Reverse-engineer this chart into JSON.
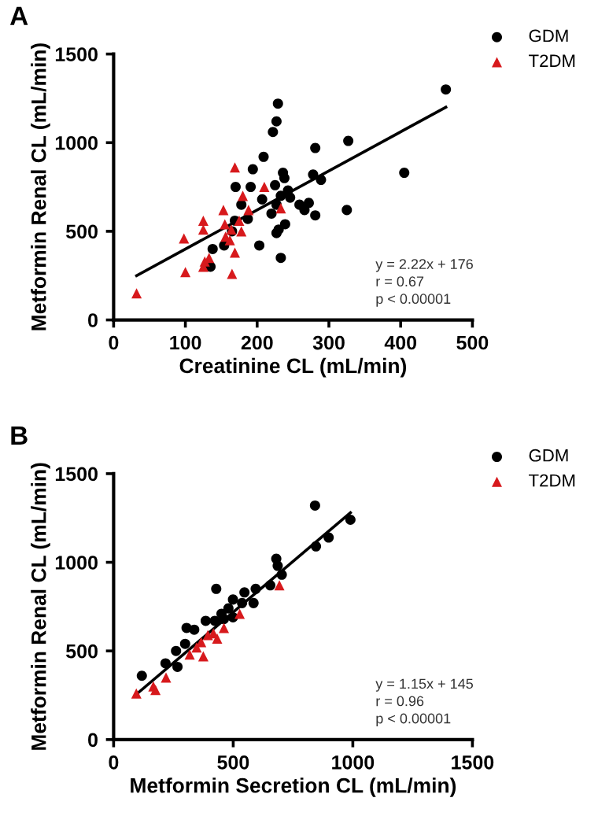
{
  "chart_data": [
    {
      "type": "scatter",
      "title": "A",
      "xlabel": "Creatinine CL (mL/min)",
      "ylabel": "Metformin Renal CL (mL/min)",
      "xlim": [
        0,
        500
      ],
      "ylim": [
        0,
        1500
      ],
      "xticks": [
        0,
        100,
        200,
        300,
        400,
        500
      ],
      "yticks": [
        0,
        500,
        1000,
        1500
      ],
      "legend": "top right",
      "grid": false,
      "annotations": [
        "y = 2.22x + 176\nr = 0.67\np < 0.00001"
      ],
      "series": [
        {
          "name": "GDM",
          "color": "#000000",
          "marker": "circle",
          "x": [
            463,
            229,
            227,
            222,
            281,
            327,
            209,
            194,
            405,
            236,
            238,
            278,
            289,
            191,
            170,
            225,
            243,
            246,
            233,
            207,
            227,
            259,
            272,
            266,
            281,
            325,
            178,
            220,
            187,
            169,
            239,
            230,
            227,
            165,
            154,
            203,
            138,
            135,
            233
          ],
          "values": [
            1300,
            1220,
            1120,
            1060,
            970,
            1010,
            920,
            850,
            830,
            830,
            800,
            820,
            790,
            750,
            750,
            760,
            730,
            690,
            700,
            680,
            650,
            650,
            660,
            620,
            590,
            620,
            650,
            600,
            570,
            560,
            540,
            510,
            490,
            500,
            420,
            420,
            400,
            300,
            350
          ]
        },
        {
          "name": "T2DM",
          "color": "#d7191c",
          "marker": "triangle",
          "x": [
            32,
            98,
            100,
            125,
            125,
            153,
            155,
            169,
            180,
            210,
            233,
            188,
            175,
            164,
            156,
            169,
            165,
            127,
            133,
            125,
            178,
            162
          ],
          "values": [
            150,
            460,
            270,
            560,
            510,
            620,
            540,
            860,
            700,
            750,
            630,
            620,
            560,
            510,
            470,
            380,
            260,
            330,
            350,
            300,
            500,
            450
          ]
        },
        {
          "type": "line",
          "color": "#000000",
          "x": [
            32,
            463
          ],
          "values": [
            250,
            1200
          ]
        }
      ]
    },
    {
      "type": "scatter",
      "title": "B",
      "xlabel": "Metformin Secretion CL (mL/min)",
      "ylabel": "Metformin Renal CL (mL/min)",
      "xlim": [
        0,
        1500
      ],
      "ylim": [
        0,
        1500
      ],
      "xticks": [
        0,
        500,
        1000,
        1500
      ],
      "yticks": [
        0,
        500,
        1000,
        1500
      ],
      "legend": "top right",
      "grid": false,
      "annotations": [
        "y = 1.15x + 145\nr = 0.96\np < 0.00001"
      ],
      "series": [
        {
          "name": "GDM",
          "color": "#000000",
          "marker": "circle",
          "x": [
            118,
            842,
            990,
            899,
            846,
            680,
            686,
            703,
            655,
            429,
            594,
            547,
            585,
            499,
            385,
            451,
            480,
            305,
            337,
            299,
            261,
            267,
            217,
            423,
            499,
            537,
            461
          ],
          "values": [
            360,
            1320,
            1240,
            1140,
            1090,
            1020,
            980,
            930,
            870,
            850,
            850,
            830,
            770,
            790,
            670,
            710,
            740,
            630,
            620,
            540,
            500,
            410,
            430,
            670,
            690,
            770,
            680
          ]
        },
        {
          "name": "T2DM",
          "color": "#d7191c",
          "marker": "triangle",
          "x": [
            95,
            175,
            219,
            318,
            375,
            366,
            394,
            433,
            461,
            527,
            693,
            347,
            417,
            166
          ],
          "values": [
            260,
            280,
            350,
            480,
            470,
            550,
            590,
            570,
            630,
            710,
            870,
            520,
            600,
            300
          ]
        },
        {
          "type": "line",
          "color": "#000000",
          "x": [
            99,
            990
          ],
          "values": [
            260,
            1280
          ]
        }
      ]
    }
  ]
}
